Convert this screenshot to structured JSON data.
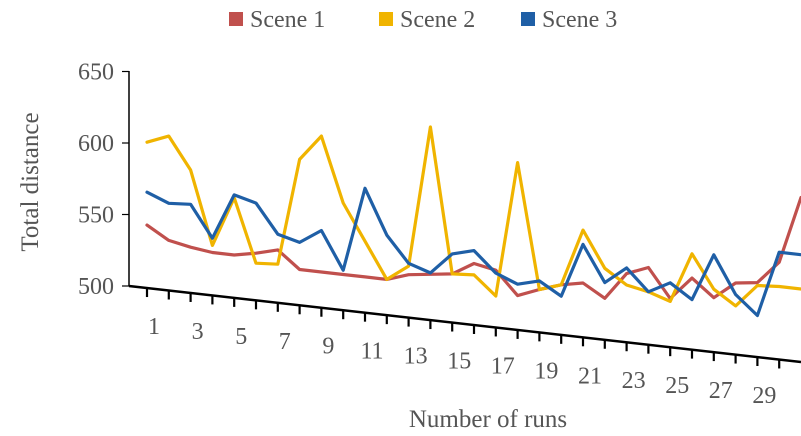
{
  "chart_data": {
    "type": "line",
    "title": "",
    "xlabel": "Number of runs",
    "ylabel": "Total distance",
    "ylim": [
      500,
      650
    ],
    "y_ticks": [
      500,
      550,
      600,
      650
    ],
    "x": [
      1,
      2,
      3,
      4,
      5,
      6,
      7,
      8,
      9,
      10,
      11,
      12,
      13,
      14,
      15,
      16,
      17,
      18,
      19,
      20,
      21,
      22,
      23,
      24,
      25,
      26,
      27,
      28,
      29,
      30,
      31
    ],
    "x_tick_labels": [
      "1",
      "3",
      "5",
      "7",
      "9",
      "11",
      "13",
      "15",
      "17",
      "19",
      "21",
      "23",
      "25",
      "27",
      "29"
    ],
    "legend_position": "top",
    "grid": false,
    "series": [
      {
        "name": "Scene 1",
        "color": "#c0504d",
        "values": [
          544,
          535,
          532,
          530,
          530,
          533,
          537,
          525,
          525,
          525,
          525,
          525,
          530,
          532,
          534,
          543,
          540,
          524,
          530,
          535,
          538,
          529,
          548,
          554,
          534,
          550,
          538,
          550,
          552,
          568,
          615
        ]
      },
      {
        "name": "Scene 2",
        "color": "#f0b400",
        "values": [
          602,
          608,
          586,
          535,
          570,
          526,
          527,
          602,
          620,
          575,
          550,
          525,
          536,
          635,
          534,
          535,
          522,
          617,
          530,
          535,
          575,
          550,
          540,
          537,
          532,
          567,
          544,
          534,
          550,
          551,
          551
        ]
      },
      {
        "name": "Scene 3",
        "color": "#1f5fa6",
        "values": [
          567,
          561,
          562,
          540,
          572,
          568,
          548,
          544,
          554,
          528,
          587,
          556,
          538,
          533,
          548,
          552,
          538,
          532,
          536,
          527,
          565,
          540,
          552,
          537,
          545,
          535,
          568,
          542,
          529,
          575,
          575
        ]
      }
    ]
  }
}
